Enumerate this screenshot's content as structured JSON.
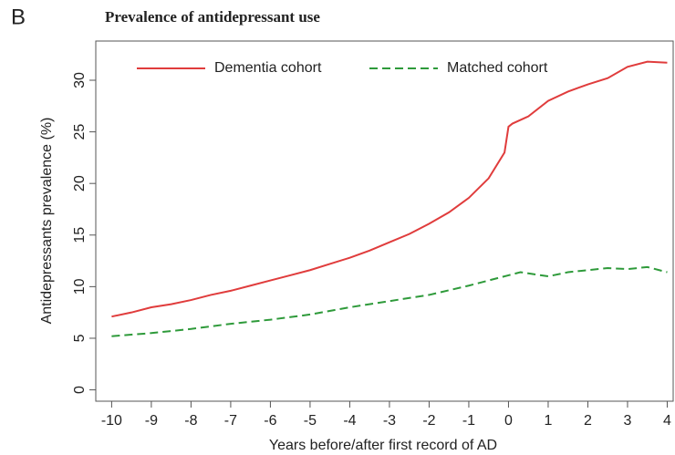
{
  "chart_data": {
    "type": "line",
    "panel_label": "B",
    "title": "Prevalence of antidepressant use",
    "x_label": "Years before/after first record of AD",
    "y_label": "Antidepressants prevalence (%)",
    "legend": "top-left",
    "xlim": [
      -10.4,
      4.15
    ],
    "ylim": [
      -1.1,
      33.8
    ],
    "xticks": [
      -10,
      -9,
      -8,
      -7,
      -6,
      -5,
      -4,
      -3,
      -2,
      -1,
      0,
      1,
      2,
      3,
      4
    ],
    "yticks": [
      0,
      5,
      10,
      15,
      20,
      25,
      30
    ],
    "series": [
      {
        "name": "Dementia cohort",
        "color": "#e03c3c",
        "dash": false,
        "x": [
          -10,
          -9.5,
          -9,
          -8.5,
          -8,
          -7.5,
          -7,
          -6.5,
          -6,
          -5.5,
          -5,
          -4.5,
          -4,
          -3.5,
          -3,
          -2.5,
          -2,
          -1.5,
          -1,
          -0.5,
          -0.1,
          0,
          0.1,
          0.5,
          1,
          1.5,
          2,
          2.5,
          3,
          3.5,
          4
        ],
        "values": [
          7.1,
          7.5,
          8.0,
          8.3,
          8.7,
          9.2,
          9.6,
          10.1,
          10.6,
          11.1,
          11.6,
          12.2,
          12.8,
          13.5,
          14.3,
          15.1,
          16.1,
          17.2,
          18.6,
          20.5,
          23,
          25.5,
          25.8,
          26.5,
          28,
          28.9,
          29.6,
          30.2,
          31.3,
          31.8,
          31.7
        ]
      },
      {
        "name": "Matched cohort",
        "color": "#2e9a3a",
        "dash": true,
        "x": [
          -10,
          -9,
          -8,
          -7,
          -6,
          -5,
          -4,
          -3,
          -2,
          -1,
          -0.5,
          0,
          0.3,
          1,
          1.5,
          2,
          2.5,
          3,
          3.5,
          4
        ],
        "values": [
          5.2,
          5.5,
          5.9,
          6.4,
          6.8,
          7.3,
          8.0,
          8.6,
          9.2,
          10.1,
          10.6,
          11.1,
          11.4,
          11.0,
          11.4,
          11.6,
          11.8,
          11.7,
          11.9,
          11.4
        ]
      }
    ]
  }
}
